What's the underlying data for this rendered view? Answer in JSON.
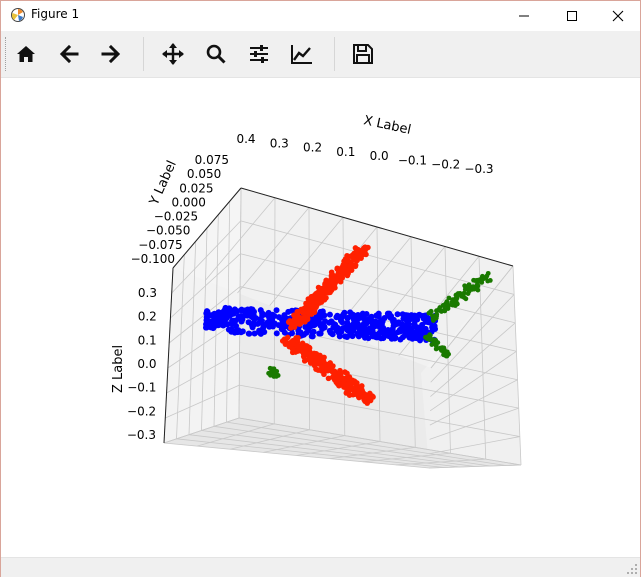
{
  "window": {
    "title": "Figure 1",
    "controls": [
      "minimize",
      "maximize",
      "close"
    ]
  },
  "toolbar": {
    "buttons": [
      {
        "name": "home",
        "icon": "home-icon"
      },
      {
        "name": "back",
        "icon": "arrow-left-icon"
      },
      {
        "name": "forward",
        "icon": "arrow-right-icon"
      },
      {
        "name": "pan",
        "icon": "move-icon"
      },
      {
        "name": "zoom",
        "icon": "magnifier-icon"
      },
      {
        "name": "configure-subplots",
        "icon": "sliders-icon"
      },
      {
        "name": "edit-axis",
        "icon": "chart-line-icon"
      },
      {
        "name": "save",
        "icon": "floppy-icon"
      }
    ]
  },
  "chart_data": {
    "type": "scatter",
    "projection": "3d",
    "xlabel": "X Label",
    "ylabel": "Y Label",
    "zlabel": "Z Label",
    "x_ticks": [
      "0.4",
      "0.3",
      "0.2",
      "0.1",
      "0.0",
      "−0.1",
      "−0.2",
      "−0.3"
    ],
    "y_ticks": [
      "0.075",
      "0.050",
      "0.025",
      "0.000",
      "−0.025",
      "−0.050",
      "−0.075",
      "−0.100"
    ],
    "z_ticks": [
      "0.3",
      "0.2",
      "0.1",
      "0.0",
      "−0.1",
      "−0.2",
      "−0.3"
    ],
    "xlim": [
      -0.35,
      0.45
    ],
    "ylim": [
      -0.1,
      0.08
    ],
    "zlim": [
      -0.35,
      0.35
    ],
    "grid": true,
    "series_colors": {
      "fuselage": "#0000ff",
      "wings": "#ff2000",
      "tail": "#1a7a00"
    }
  }
}
